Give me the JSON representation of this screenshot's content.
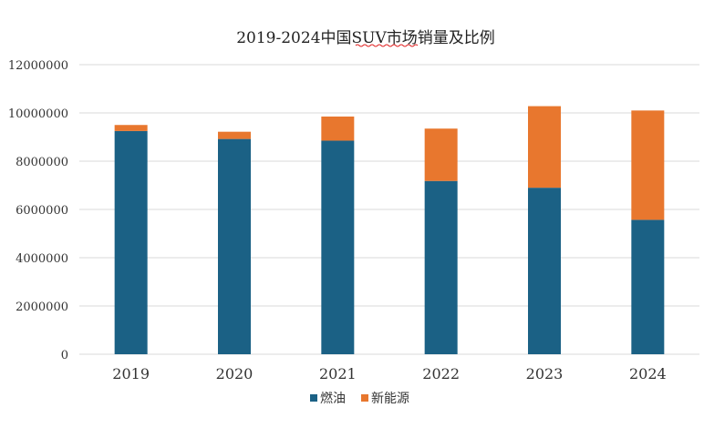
{
  "chart_data": {
    "type": "bar",
    "stacked": true,
    "title": "2019-2024中国SUV市场销量及比例",
    "categories": [
      "2019",
      "2020",
      "2021",
      "2022",
      "2023",
      "2024"
    ],
    "series": [
      {
        "name": "燃油",
        "color": "#1b6185",
        "values": [
          9250000,
          8920000,
          8850000,
          7180000,
          6900000,
          5570000
        ]
      },
      {
        "name": "新能源",
        "color": "#e8772e",
        "values": [
          250000,
          300000,
          1000000,
          2170000,
          3380000,
          4530000
        ]
      }
    ],
    "yticks": [
      "0",
      "2000000",
      "4000000",
      "6000000",
      "8000000",
      "10000000",
      "12000000"
    ],
    "ylim": [
      0,
      12000000
    ],
    "grid": true,
    "legend": "bottom"
  }
}
